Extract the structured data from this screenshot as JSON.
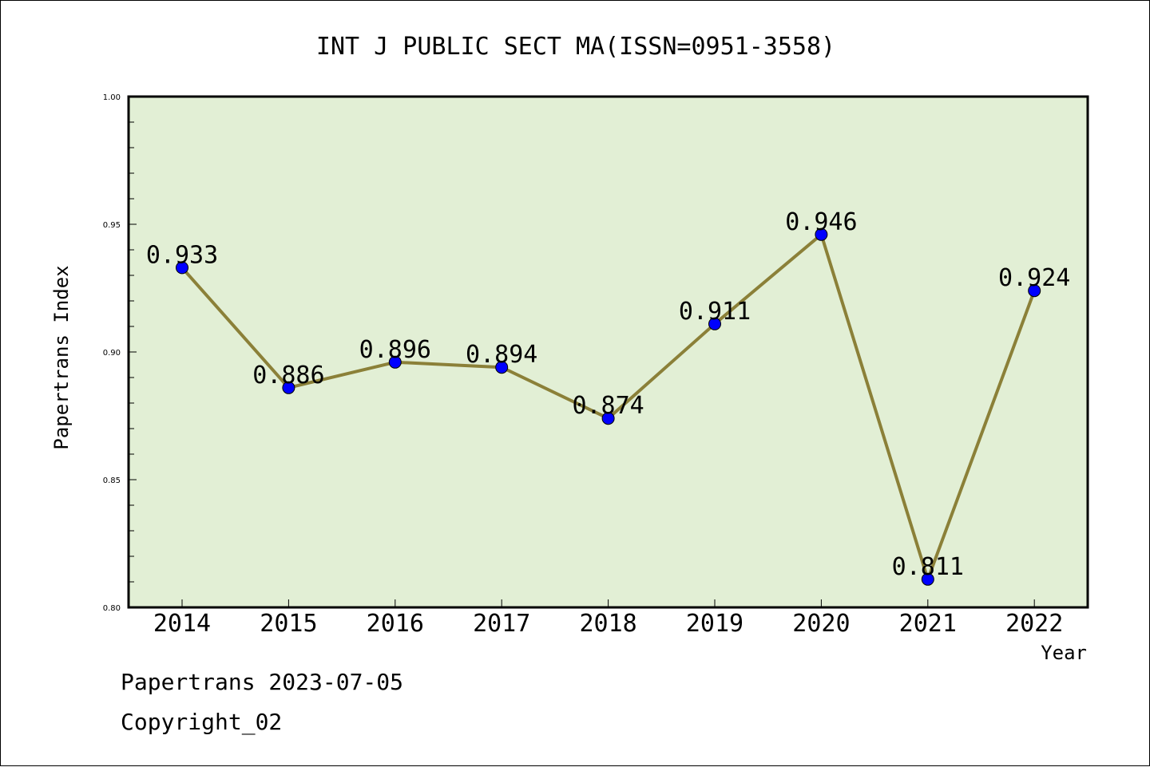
{
  "chart_data": {
    "type": "line",
    "title": "INT J PUBLIC SECT MA(ISSN=0951-3558)",
    "xlabel": "Year",
    "ylabel": "Papertrans Index",
    "categories": [
      "2014",
      "2015",
      "2016",
      "2017",
      "2018",
      "2019",
      "2020",
      "2021",
      "2022"
    ],
    "series": [
      {
        "values": [
          0.933,
          0.886,
          0.896,
          0.894,
          0.874,
          0.911,
          0.946,
          0.811,
          0.924
        ],
        "data_labels": [
          "0.933",
          "0.886",
          "0.896",
          "0.894",
          "0.874",
          "0.911",
          "0.946",
          "0.811",
          "0.924"
        ]
      }
    ],
    "ylim": [
      0.8,
      1.0
    ],
    "yticks": [
      "0.80",
      "0.85",
      "0.90",
      "0.95",
      "1.00"
    ],
    "grid": false,
    "plot_background": "#e2efd5",
    "line_color": "#8b8038",
    "marker_color": "#0000ff"
  },
  "footer": {
    "line1": "Papertrans 2023-07-05",
    "line2": "Copyright_02"
  }
}
